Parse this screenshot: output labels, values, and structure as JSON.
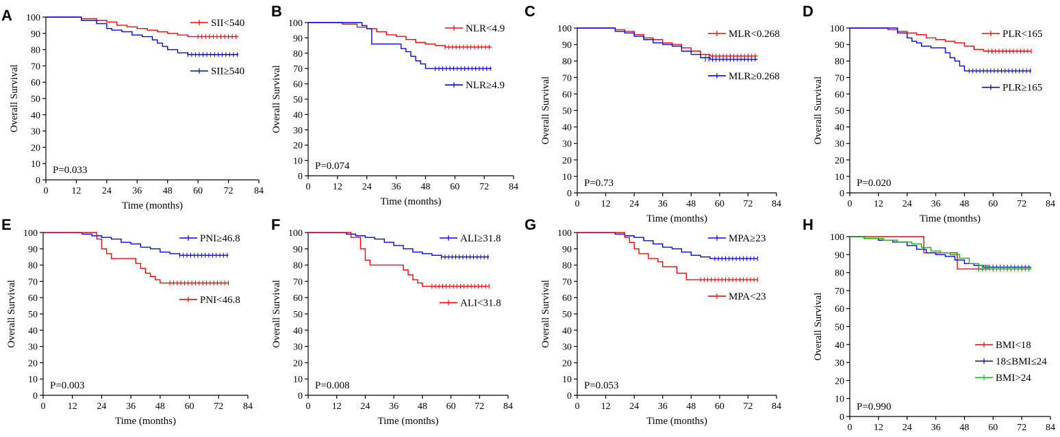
{
  "chart_data": [
    {
      "panel": "A",
      "type": "line",
      "pvalue": "P=0.033",
      "xlabel": "Time (months)",
      "ylabel": "Overall Survival",
      "xlim": [
        0,
        84
      ],
      "ylim": [
        0,
        100
      ],
      "xticks": [
        0,
        12,
        24,
        36,
        48,
        60,
        72,
        84
      ],
      "yticks": [
        0,
        10,
        20,
        30,
        40,
        50,
        60,
        70,
        80,
        90,
        100
      ],
      "legend_position": "top-right",
      "series": [
        {
          "name": "SII<540",
          "color": "#ff0000",
          "censor_from": 60,
          "censor_to": 76,
          "x": [
            0,
            8,
            14,
            20,
            24,
            28,
            32,
            36,
            40,
            44,
            48,
            52,
            56,
            76
          ],
          "y": [
            100,
            100,
            99,
            98,
            97,
            95,
            94,
            93,
            92,
            91,
            90,
            89,
            88,
            88
          ]
        },
        {
          "name": "SII≥540",
          "color": "#0000ff",
          "censor_from": 56,
          "censor_to": 76,
          "x": [
            0,
            8,
            14,
            20,
            24,
            26,
            30,
            34,
            38,
            42,
            44,
            46,
            48,
            52,
            56,
            76
          ],
          "y": [
            100,
            100,
            98,
            96,
            93,
            92,
            91,
            89,
            88,
            86,
            84,
            82,
            80,
            78,
            77,
            77
          ]
        }
      ]
    },
    {
      "panel": "B",
      "type": "line",
      "pvalue": "P=0.074",
      "xlabel": "Time (months)",
      "ylabel": "Overall Survival",
      "xlim": [
        0,
        84
      ],
      "ylim": [
        0,
        100
      ],
      "xticks": [
        0,
        12,
        24,
        36,
        48,
        60,
        72,
        84
      ],
      "yticks": [
        0,
        10,
        20,
        30,
        40,
        50,
        60,
        70,
        80,
        90,
        100
      ],
      "legend_position": "top-right",
      "series": [
        {
          "name": "NLR<4.9",
          "color": "#ff0000",
          "censor_from": 56,
          "censor_to": 75,
          "x": [
            0,
            8,
            14,
            20,
            24,
            28,
            32,
            36,
            40,
            44,
            48,
            52,
            56,
            75
          ],
          "y": [
            100,
            100,
            99,
            97,
            96,
            94,
            92,
            91,
            89,
            87,
            86,
            85,
            84,
            84
          ]
        },
        {
          "name": "NLR≥4.9",
          "color": "#0000ff",
          "censor_from": 52,
          "censor_to": 75,
          "x": [
            0,
            14,
            22,
            24,
            26,
            36,
            38,
            40,
            42,
            44,
            46,
            48,
            75
          ],
          "y": [
            100,
            100,
            98,
            96,
            86,
            86,
            83,
            81,
            78,
            75,
            73,
            70,
            70
          ]
        }
      ]
    },
    {
      "panel": "C",
      "type": "line",
      "pvalue": "P=0.73",
      "xlabel": "Time (months)",
      "ylabel": "Overall Survival",
      "xlim": [
        0,
        84
      ],
      "ylim": [
        0,
        100
      ],
      "xticks": [
        0,
        12,
        24,
        36,
        48,
        60,
        72,
        84
      ],
      "yticks": [
        0,
        10,
        20,
        30,
        40,
        50,
        60,
        70,
        80,
        90,
        100
      ],
      "legend_position": "top-right",
      "series": [
        {
          "name": "MLR<0.268",
          "color": "#ff0000",
          "censor_from": 54,
          "censor_to": 76,
          "x": [
            0,
            10,
            16,
            20,
            24,
            28,
            32,
            36,
            40,
            44,
            48,
            52,
            56,
            76
          ],
          "y": [
            100,
            100,
            99,
            98,
            96,
            94,
            93,
            91,
            90,
            88,
            86,
            84,
            83,
            83
          ]
        },
        {
          "name": "MLR≥0.268",
          "color": "#0000ff",
          "censor_from": 54,
          "censor_to": 76,
          "x": [
            0,
            10,
            16,
            20,
            24,
            28,
            32,
            36,
            40,
            44,
            48,
            52,
            56,
            76
          ],
          "y": [
            100,
            100,
            98,
            97,
            95,
            93,
            91,
            90,
            89,
            86,
            84,
            82,
            81,
            81
          ]
        }
      ]
    },
    {
      "panel": "D",
      "type": "line",
      "pvalue": "P=0.020",
      "xlabel": "Time (months)",
      "ylabel": "Overall Survival",
      "xlim": [
        0,
        84
      ],
      "ylim": [
        0,
        100
      ],
      "xticks": [
        0,
        12,
        24,
        36,
        48,
        60,
        72,
        84
      ],
      "yticks": [
        0,
        10,
        20,
        30,
        40,
        50,
        60,
        70,
        80,
        90,
        100
      ],
      "legend_position": "top-right",
      "series": [
        {
          "name": "PLR<165",
          "color": "#ff0000",
          "censor_from": 58,
          "censor_to": 76,
          "x": [
            0,
            10,
            16,
            20,
            24,
            28,
            32,
            36,
            40,
            44,
            48,
            52,
            56,
            76
          ],
          "y": [
            100,
            100,
            99,
            98,
            97,
            96,
            94,
            93,
            92,
            91,
            89,
            87,
            86,
            86
          ]
        },
        {
          "name": "PLR≥165",
          "color": "#0000ff",
          "censor_from": 50,
          "censor_to": 76,
          "x": [
            0,
            12,
            20,
            24,
            26,
            28,
            30,
            34,
            38,
            40,
            42,
            44,
            46,
            48,
            76
          ],
          "y": [
            100,
            100,
            97,
            94,
            92,
            91,
            89,
            88,
            88,
            85,
            82,
            80,
            77,
            74,
            74
          ]
        }
      ]
    },
    {
      "panel": "E",
      "type": "line",
      "pvalue": "P=0.003",
      "xlabel": "Time (months)",
      "ylabel": "Overall Survival",
      "xlim": [
        0,
        84
      ],
      "ylim": [
        0,
        100
      ],
      "xticks": [
        0,
        12,
        24,
        36,
        48,
        60,
        72,
        84
      ],
      "yticks": [
        0,
        10,
        20,
        30,
        40,
        50,
        60,
        70,
        80,
        90,
        100
      ],
      "legend_position": "top-right",
      "series": [
        {
          "name": "PNI≥46.8",
          "color": "#0000ff",
          "censor_from": 56,
          "censor_to": 76,
          "x": [
            0,
            10,
            16,
            20,
            24,
            28,
            32,
            36,
            40,
            44,
            48,
            52,
            56,
            76
          ],
          "y": [
            100,
            100,
            99,
            98,
            97,
            96,
            94,
            93,
            91,
            90,
            88,
            87,
            86,
            86
          ]
        },
        {
          "name": "PNI<46.8",
          "color": "#ff0000",
          "censor_from": 52,
          "censor_to": 76,
          "x": [
            0,
            16,
            22,
            24,
            26,
            28,
            36,
            38,
            40,
            42,
            44,
            46,
            48,
            76
          ],
          "y": [
            100,
            100,
            96,
            90,
            87,
            84,
            84,
            81,
            78,
            75,
            73,
            71,
            69,
            69
          ]
        }
      ]
    },
    {
      "panel": "F",
      "type": "line",
      "pvalue": "P=0.008",
      "xlabel": "Time (months)",
      "ylabel": "Overall Survival",
      "xlim": [
        0,
        84
      ],
      "ylim": [
        0,
        100
      ],
      "xticks": [
        0,
        12,
        24,
        36,
        48,
        60,
        72,
        84
      ],
      "yticks": [
        0,
        10,
        20,
        30,
        40,
        50,
        60,
        70,
        80,
        90,
        100
      ],
      "legend_position": "top-right",
      "series": [
        {
          "name": "ALI≥31.8",
          "color": "#0000ff",
          "censor_from": 56,
          "censor_to": 76,
          "x": [
            0,
            10,
            16,
            20,
            24,
            28,
            32,
            36,
            40,
            44,
            48,
            52,
            56,
            76
          ],
          "y": [
            100,
            100,
            99,
            98,
            97,
            96,
            94,
            92,
            90,
            88,
            87,
            86,
            85,
            85
          ]
        },
        {
          "name": "ALI<31.8",
          "color": "#ff0000",
          "censor_from": 52,
          "censor_to": 76,
          "x": [
            0,
            12,
            18,
            22,
            24,
            26,
            38,
            40,
            42,
            44,
            46,
            48,
            76
          ],
          "y": [
            100,
            100,
            97,
            90,
            83,
            80,
            80,
            77,
            74,
            71,
            69,
            67,
            67
          ]
        }
      ]
    },
    {
      "panel": "G",
      "type": "line",
      "pvalue": "P=0.053",
      "xlabel": "Time (months)",
      "ylabel": "Overall Survival",
      "xlim": [
        0,
        84
      ],
      "ylim": [
        0,
        100
      ],
      "xticks": [
        0,
        12,
        24,
        36,
        48,
        60,
        72,
        84
      ],
      "yticks": [
        0,
        10,
        20,
        30,
        40,
        50,
        60,
        70,
        80,
        90,
        100
      ],
      "legend_position": "top-right",
      "series": [
        {
          "name": "MPA≥23",
          "color": "#0000ff",
          "censor_from": 58,
          "censor_to": 76,
          "x": [
            0,
            10,
            16,
            20,
            24,
            28,
            32,
            36,
            40,
            44,
            48,
            52,
            56,
            76
          ],
          "y": [
            100,
            100,
            99,
            98,
            97,
            95,
            93,
            91,
            90,
            88,
            86,
            85,
            84,
            84
          ]
        },
        {
          "name": "MPA<23",
          "color": "#ff0000",
          "censor_from": 52,
          "censor_to": 76,
          "x": [
            0,
            14,
            20,
            22,
            24,
            26,
            30,
            34,
            36,
            42,
            46,
            76
          ],
          "y": [
            100,
            100,
            97,
            94,
            90,
            87,
            84,
            82,
            79,
            75,
            71,
            71
          ]
        }
      ]
    },
    {
      "panel": "H",
      "type": "line",
      "pvalue": "P=0.990",
      "xlabel": "Time(months)",
      "ylabel": "Overall Survival",
      "xlim": [
        0,
        84
      ],
      "ylim": [
        0,
        100
      ],
      "xticks": [
        0,
        12,
        24,
        36,
        48,
        60,
        72,
        84
      ],
      "yticks": [
        0,
        10,
        20,
        30,
        40,
        50,
        60,
        70,
        80,
        90,
        100
      ],
      "legend_position": "bottom-right",
      "series": [
        {
          "name": "BMI<18",
          "color": "#ff0000",
          "censor_from": 54,
          "censor_to": 76,
          "x": [
            0,
            30,
            31,
            44,
            45,
            76
          ],
          "y": [
            100,
            100,
            91,
            91,
            82,
            82
          ]
        },
        {
          "name": "18≤BMI≤24",
          "color": "#0000ff",
          "censor_from": 54,
          "censor_to": 76,
          "x": [
            0,
            6,
            12,
            18,
            24,
            28,
            32,
            36,
            40,
            44,
            48,
            52,
            56,
            76
          ],
          "y": [
            100,
            99,
            98,
            97,
            95,
            93,
            91,
            90,
            89,
            87,
            85,
            84,
            83,
            83
          ]
        },
        {
          "name": "BMI>24",
          "color": "#00c000",
          "censor_from": 54,
          "censor_to": 76,
          "x": [
            0,
            6,
            14,
            20,
            26,
            30,
            34,
            38,
            42,
            46,
            50,
            54,
            58,
            76
          ],
          "y": [
            100,
            99,
            98,
            97,
            96,
            94,
            92,
            91,
            90,
            88,
            85,
            84,
            82,
            82
          ]
        }
      ]
    }
  ]
}
